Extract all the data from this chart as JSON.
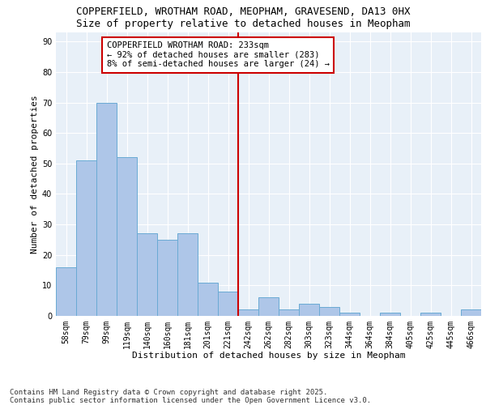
{
  "title1": "COPPERFIELD, WROTHAM ROAD, MEOPHAM, GRAVESEND, DA13 0HX",
  "title2": "Size of property relative to detached houses in Meopham",
  "xlabel": "Distribution of detached houses by size in Meopham",
  "ylabel": "Number of detached properties",
  "categories": [
    "58sqm",
    "79sqm",
    "99sqm",
    "119sqm",
    "140sqm",
    "160sqm",
    "181sqm",
    "201sqm",
    "221sqm",
    "242sqm",
    "262sqm",
    "282sqm",
    "303sqm",
    "323sqm",
    "344sqm",
    "364sqm",
    "384sqm",
    "405sqm",
    "425sqm",
    "445sqm",
    "466sqm"
  ],
  "values": [
    16,
    51,
    70,
    52,
    27,
    25,
    27,
    11,
    8,
    2,
    6,
    2,
    4,
    3,
    1,
    0,
    1,
    0,
    1,
    0,
    2
  ],
  "bar_color": "#aec6e8",
  "bar_edgecolor": "#6aaad4",
  "vline_x": 8.5,
  "vline_color": "#cc0000",
  "annotation_title": "COPPERFIELD WROTHAM ROAD: 233sqm",
  "annotation_line1": "← 92% of detached houses are smaller (283)",
  "annotation_line2": "8% of semi-detached houses are larger (24) →",
  "annotation_box_color": "#cc0000",
  "ylim": [
    0,
    93
  ],
  "yticks": [
    0,
    10,
    20,
    30,
    40,
    50,
    60,
    70,
    80,
    90
  ],
  "background_color": "#e8f0f8",
  "grid_color": "#ffffff",
  "footer": "Contains HM Land Registry data © Crown copyright and database right 2025.\nContains public sector information licensed under the Open Government Licence v3.0.",
  "title1_fontsize": 9,
  "title2_fontsize": 9,
  "xlabel_fontsize": 8,
  "ylabel_fontsize": 8,
  "tick_fontsize": 7,
  "annotation_fontsize": 7.5,
  "footer_fontsize": 6.5
}
